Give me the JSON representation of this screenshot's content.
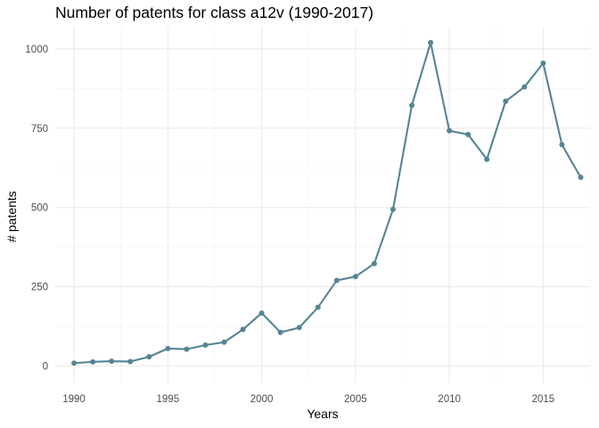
{
  "chart_data": {
    "type": "line",
    "title": "Number of patents for class a12v (1990-2017)",
    "xlabel": "Years",
    "ylabel": "# patents",
    "xlim": [
      1989,
      2017.5
    ],
    "ylim": [
      -55,
      1070
    ],
    "xticks": [
      1990,
      1995,
      2000,
      2005,
      2010,
      2015
    ],
    "yticks": [
      0,
      250,
      500,
      750,
      1000
    ],
    "grid": true,
    "legend": "none",
    "series_color": "#568494",
    "x": [
      1990,
      1991,
      1992,
      1993,
      1994,
      1995,
      1996,
      1997,
      1998,
      1999,
      2000,
      2001,
      2002,
      2003,
      2004,
      2005,
      2006,
      2007,
      2008,
      2009,
      2010,
      2011,
      2012,
      2013,
      2014,
      2015,
      2016,
      2017
    ],
    "series": [
      {
        "values": [
          9,
          13,
          15,
          14,
          29,
          55,
          53,
          66,
          75,
          115,
          167,
          106,
          121,
          185,
          270,
          282,
          323,
          494,
          822,
          1020,
          742,
          730,
          652,
          835,
          880,
          955,
          698,
          595
        ]
      }
    ]
  }
}
